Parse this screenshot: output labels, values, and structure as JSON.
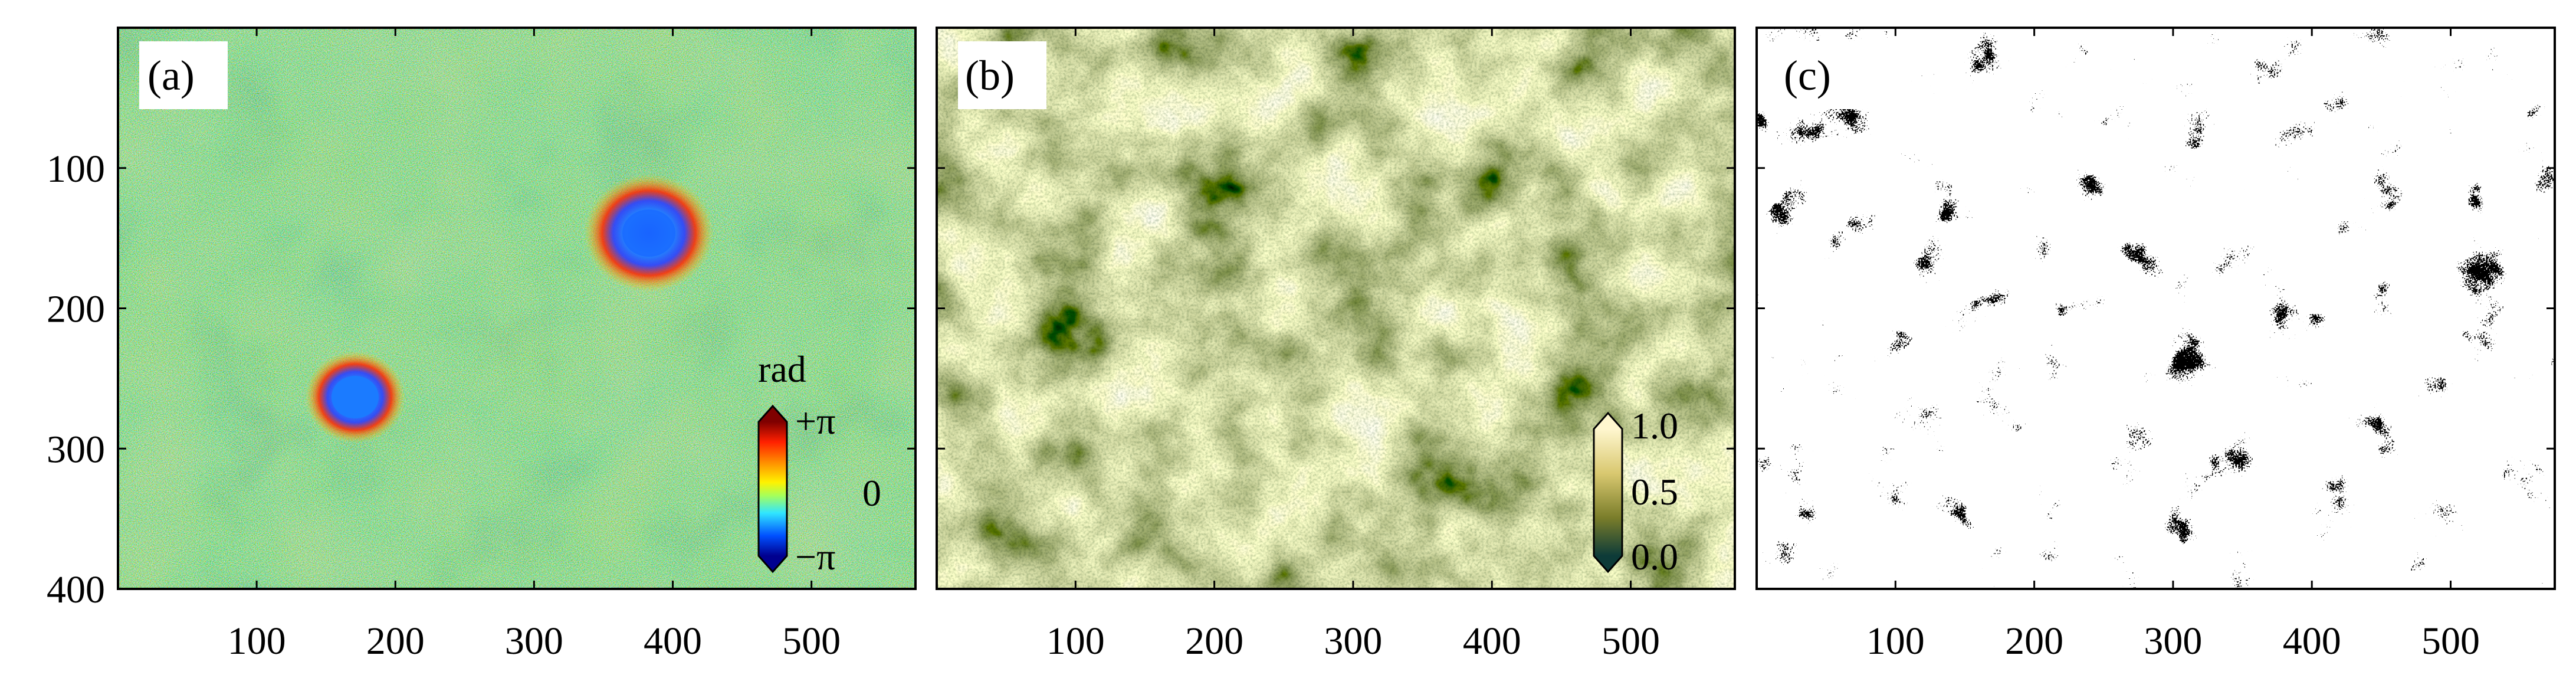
{
  "figure": {
    "panels": [
      {
        "id": "a",
        "label": "(a)",
        "colormap": "jet",
        "colorbar": {
          "title": "rad",
          "ticks": [
            "+π",
            "0",
            "−π"
          ]
        }
      },
      {
        "id": "b",
        "label": "(b)",
        "colormap": "olive-to-cream",
        "colorbar": {
          "title": "",
          "ticks": [
            "1.0",
            "0.5",
            "0.0"
          ]
        }
      },
      {
        "id": "c",
        "label": "(c)",
        "colormap": "binary",
        "colorbar": null
      }
    ],
    "x_ticks": [
      "100",
      "200",
      "300",
      "400",
      "500"
    ],
    "x_tick_values": [
      100,
      200,
      300,
      400,
      500
    ],
    "y_ticks": [
      "100",
      "200",
      "300",
      "400"
    ],
    "y_tick_values": [
      100,
      200,
      300,
      400
    ],
    "x_range": [
      0,
      575
    ],
    "y_range": [
      0,
      400
    ]
  }
}
